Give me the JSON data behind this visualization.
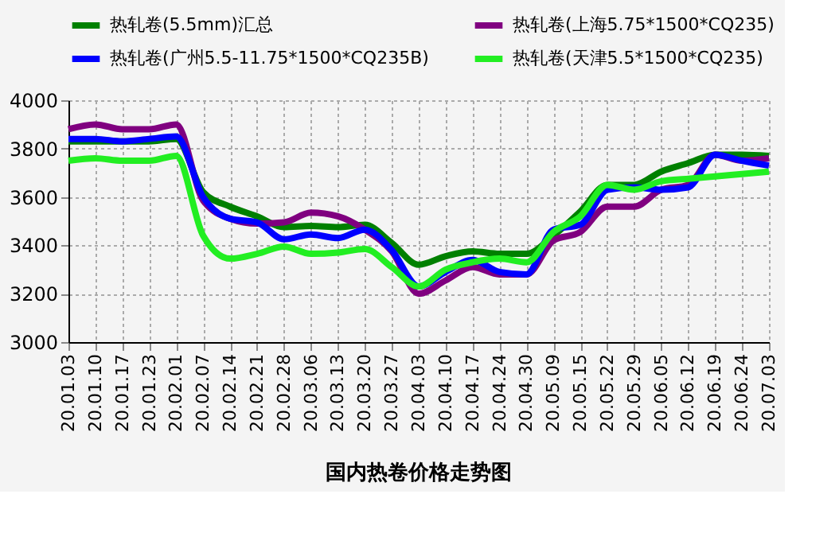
{
  "chart_data": {
    "type": "line",
    "title": "国内热卷价格走势图",
    "categories": [
      "20.01.03",
      "20.01.10",
      "20.01.17",
      "20.01.23",
      "20.02.01",
      "20.02.07",
      "20.02.14",
      "20.02.21",
      "20.02.28",
      "20.03.06",
      "20.03.13",
      "20.03.20",
      "20.03.27",
      "20.04.03",
      "20.04.10",
      "20.04.17",
      "20.04.24",
      "20.04.30",
      "20.05.09",
      "20.05.15",
      "20.05.22",
      "20.05.29",
      "20.06.05",
      "20.06.12",
      "20.06.19",
      "20.06.24",
      "20.07.03"
    ],
    "series": [
      {
        "name": "热轧卷(5.5mm)汇总",
        "color": "#008000",
        "values": [
          3830,
          3830,
          3830,
          3830,
          3840,
          3620,
          3560,
          3520,
          3475,
          3480,
          3475,
          3485,
          3410,
          3320,
          3355,
          3375,
          3365,
          3365,
          3440,
          3540,
          3650,
          3650,
          3705,
          3740,
          3775,
          3775,
          3770
        ]
      },
      {
        "name": "热轧卷(上海5.75*1500*CQ235)",
        "color": "#800080",
        "values": [
          3880,
          3900,
          3880,
          3880,
          3900,
          3585,
          3510,
          3490,
          3495,
          3535,
          3520,
          3465,
          3375,
          3200,
          3255,
          3310,
          3280,
          3280,
          3420,
          3455,
          3560,
          3560,
          3630,
          3650,
          3775,
          3750,
          3760
        ]
      },
      {
        "name": "热轧卷(广州5.5-11.75*1500*CQ235B)",
        "color": "#0000ff",
        "values": [
          3840,
          3840,
          3830,
          3840,
          3850,
          3600,
          3510,
          3495,
          3425,
          3445,
          3430,
          3465,
          3380,
          3230,
          3290,
          3340,
          3290,
          3280,
          3465,
          3485,
          3630,
          3640,
          3630,
          3640,
          3775,
          3750,
          3730
        ]
      },
      {
        "name": "热轧卷(天津5.5*1500*CQ235)",
        "color": "#22ee22",
        "values": [
          3750,
          3760,
          3750,
          3750,
          3770,
          3440,
          3345,
          3365,
          3395,
          3365,
          3370,
          3385,
          3310,
          3230,
          3300,
          3330,
          3345,
          3330,
          3455,
          3520,
          3650,
          3630,
          3665,
          3675,
          3685,
          3695,
          3705
        ]
      }
    ],
    "ylim": [
      3000,
      4000
    ],
    "yticks": [
      3000,
      3200,
      3400,
      3600,
      3800,
      4000
    ],
    "grid": true,
    "legend": "top",
    "line_style": "solid",
    "marker": "none"
  }
}
